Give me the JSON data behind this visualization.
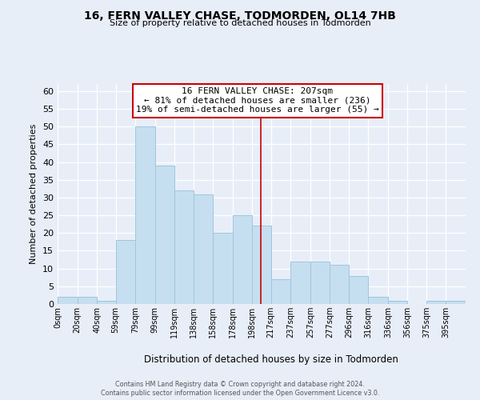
{
  "title": "16, FERN VALLEY CHASE, TODMORDEN, OL14 7HB",
  "subtitle": "Size of property relative to detached houses in Todmorden",
  "xlabel": "Distribution of detached houses by size in Todmorden",
  "ylabel": "Number of detached properties",
  "bin_labels": [
    "0sqm",
    "20sqm",
    "40sqm",
    "59sqm",
    "79sqm",
    "99sqm",
    "119sqm",
    "138sqm",
    "158sqm",
    "178sqm",
    "198sqm",
    "217sqm",
    "237sqm",
    "257sqm",
    "277sqm",
    "296sqm",
    "316sqm",
    "336sqm",
    "356sqm",
    "375sqm",
    "395sqm"
  ],
  "bin_edges": [
    0,
    20,
    40,
    59,
    79,
    99,
    119,
    138,
    158,
    178,
    198,
    217,
    237,
    257,
    277,
    296,
    316,
    336,
    356,
    375,
    395,
    415
  ],
  "counts": [
    2,
    2,
    1,
    18,
    50,
    39,
    32,
    31,
    20,
    25,
    22,
    7,
    12,
    12,
    11,
    8,
    2,
    1,
    0,
    1,
    1
  ],
  "bar_color": "#c5dff0",
  "bar_edge_color": "#a0c4de",
  "reference_line_x": 207,
  "reference_line_color": "#cc0000",
  "annotation_title": "16 FERN VALLEY CHASE: 207sqm",
  "annotation_line1": "← 81% of detached houses are smaller (236)",
  "annotation_line2": "19% of semi-detached houses are larger (55) →",
  "annotation_box_color": "#ffffff",
  "annotation_box_edge_color": "#cc0000",
  "ylim": [
    0,
    62
  ],
  "yticks": [
    0,
    5,
    10,
    15,
    20,
    25,
    30,
    35,
    40,
    45,
    50,
    55,
    60
  ],
  "footer1": "Contains HM Land Registry data © Crown copyright and database right 2024.",
  "footer2": "Contains public sector information licensed under the Open Government Licence v3.0.",
  "background_color": "#e8eef8"
}
